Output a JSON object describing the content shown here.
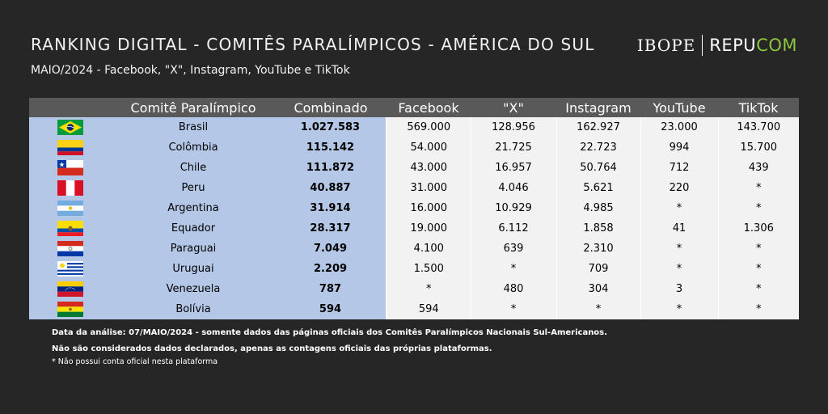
{
  "header": {
    "title": "RANKING DIGITAL - COMITÊS PARALÍMPICOS - AMÉRICA DO SUL",
    "subtitle": "MAIO/2024 - Facebook, \"X\", Instagram, YouTube e TikTok",
    "logo": {
      "ibope": "IBOPE",
      "repu": "REPU",
      "com": "COM"
    }
  },
  "colors": {
    "background": "#262626",
    "header_row": "#595959",
    "highlight_column": "#b4c7e7",
    "value_cells": "#f2f2f2",
    "logo_accent": "#8dc63f"
  },
  "chart_data": {
    "type": "table",
    "columns": [
      "",
      "Comitê Paralímpico",
      "Combinado",
      "Facebook",
      "\"X\"",
      "Instagram",
      "YouTube",
      "TikTok"
    ],
    "rows": [
      {
        "flag": "brazil-flag-icon",
        "country": "Brasil",
        "combined": "1.027.583",
        "facebook": "569.000",
        "x": "128.956",
        "instagram": "162.927",
        "youtube": "23.000",
        "tiktok": "143.700"
      },
      {
        "flag": "colombia-flag-icon",
        "country": "Colômbia",
        "combined": "115.142",
        "facebook": "54.000",
        "x": "21.725",
        "instagram": "22.723",
        "youtube": "994",
        "tiktok": "15.700"
      },
      {
        "flag": "chile-flag-icon",
        "country": "Chile",
        "combined": "111.872",
        "facebook": "43.000",
        "x": "16.957",
        "instagram": "50.764",
        "youtube": "712",
        "tiktok": "439"
      },
      {
        "flag": "peru-flag-icon",
        "country": "Peru",
        "combined": "40.887",
        "facebook": "31.000",
        "x": "4.046",
        "instagram": "5.621",
        "youtube": "220",
        "tiktok": "*"
      },
      {
        "flag": "argentina-flag-icon",
        "country": "Argentina",
        "combined": "31.914",
        "facebook": "16.000",
        "x": "10.929",
        "instagram": "4.985",
        "youtube": "*",
        "tiktok": "*"
      },
      {
        "flag": "ecuador-flag-icon",
        "country": "Equador",
        "combined": "28.317",
        "facebook": "19.000",
        "x": "6.112",
        "instagram": "1.858",
        "youtube": "41",
        "tiktok": "1.306"
      },
      {
        "flag": "paraguay-flag-icon",
        "country": "Paraguai",
        "combined": "7.049",
        "facebook": "4.100",
        "x": "639",
        "instagram": "2.310",
        "youtube": "*",
        "tiktok": "*"
      },
      {
        "flag": "uruguay-flag-icon",
        "country": "Uruguai",
        "combined": "2.209",
        "facebook": "1.500",
        "x": "*",
        "instagram": "709",
        "youtube": "*",
        "tiktok": "*"
      },
      {
        "flag": "venezuela-flag-icon",
        "country": "Venezuela",
        "combined": "787",
        "facebook": "*",
        "x": "480",
        "instagram": "304",
        "youtube": "3",
        "tiktok": "*"
      },
      {
        "flag": "bolivia-flag-icon",
        "country": "Bolívia",
        "combined": "594",
        "facebook": "594",
        "x": "*",
        "instagram": "*",
        "youtube": "*",
        "tiktok": "*"
      }
    ]
  },
  "notes": {
    "analysis_date": "Data da análise: 07/MAIO/2024 - somente dados das páginas oficiais dos Comitês Paralímpicos Nacionais Sul-Americanos.",
    "declared": "Não são considerados dados declarados, apenas as contagens oficiais das próprias plataformas.",
    "footnote": "* Não possui conta oficial nesta plataforma"
  }
}
